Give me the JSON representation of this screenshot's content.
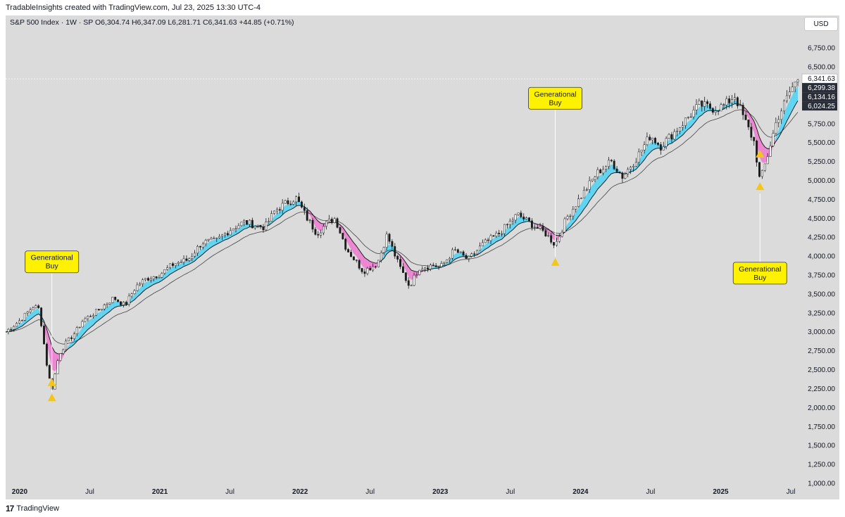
{
  "credit": "TradableInsights created with TradingView.com, Jul 23, 2025 13:30 UTC-4",
  "symbol_line": "S&P 500 Index · 1W · SP  O6,304.74  H6,347.09  L6,281.71  C6,341.63  +44.85 (+0.71%)",
  "currency": "USD",
  "footer_brand": "TradingView",
  "colors": {
    "background": "#dbdbdb",
    "bull_fill": "#5fd3f0",
    "bear_fill": "#ec86d2",
    "candle": "#1b1b1b",
    "marker": "#f5c518",
    "callout_bg": "#fff200"
  },
  "chart_data": {
    "type": "line",
    "title": "S&P 500 Index · 1W · SP",
    "ylim": [
      1000,
      6900
    ],
    "y_ticks": [
      "6,750.00",
      "6,500.00",
      "6,250.00",
      "6,000.00",
      "5,750.00",
      "5,500.00",
      "5,250.00",
      "5,000.00",
      "4,750.00",
      "4,500.00",
      "4,250.00",
      "4,000.00",
      "3,750.00",
      "3,500.00",
      "3,250.00",
      "3,000.00",
      "2,750.00",
      "2,500.00",
      "2,250.00",
      "2,000.00",
      "1,750.00",
      "1,500.00",
      "1,250.00",
      "1,000.00"
    ],
    "x_ticks": [
      {
        "label": "2020",
        "t": 2020.0,
        "bold": true
      },
      {
        "label": "Jul",
        "t": 2020.5,
        "bold": false
      },
      {
        "label": "2021",
        "t": 2021.0,
        "bold": true
      },
      {
        "label": "Jul",
        "t": 2021.5,
        "bold": false
      },
      {
        "label": "2022",
        "t": 2022.0,
        "bold": true
      },
      {
        "label": "Jul",
        "t": 2022.5,
        "bold": false
      },
      {
        "label": "2023",
        "t": 2023.0,
        "bold": true
      },
      {
        "label": "Jul",
        "t": 2023.5,
        "bold": false
      },
      {
        "label": "2024",
        "t": 2024.0,
        "bold": true
      },
      {
        "label": "Jul",
        "t": 2024.5,
        "bold": false
      },
      {
        "label": "2025",
        "t": 2025.0,
        "bold": true
      },
      {
        "label": "Jul",
        "t": 2025.5,
        "bold": false
      }
    ],
    "xlim": [
      2019.9,
      2025.55
    ],
    "price_path": [
      [
        2019.9,
        3000
      ],
      [
        2020.0,
        3150
      ],
      [
        2020.1,
        3340
      ],
      [
        2020.14,
        3300
      ],
      [
        2020.2,
        2480
      ],
      [
        2020.23,
        2237
      ],
      [
        2020.28,
        2700
      ],
      [
        2020.33,
        2850
      ],
      [
        2020.4,
        3000
      ],
      [
        2020.45,
        3150
      ],
      [
        2020.55,
        3270
      ],
      [
        2020.67,
        3450
      ],
      [
        2020.75,
        3350
      ],
      [
        2020.83,
        3600
      ],
      [
        2020.9,
        3700
      ],
      [
        2021.0,
        3760
      ],
      [
        2021.1,
        3900
      ],
      [
        2021.2,
        3950
      ],
      [
        2021.3,
        4180
      ],
      [
        2021.4,
        4200
      ],
      [
        2021.5,
        4350
      ],
      [
        2021.6,
        4450
      ],
      [
        2021.7,
        4400
      ],
      [
        2021.75,
        4380
      ],
      [
        2021.82,
        4600
      ],
      [
        2021.9,
        4700
      ],
      [
        2021.97,
        4770
      ],
      [
        2022.05,
        4500
      ],
      [
        2022.12,
        4300
      ],
      [
        2022.2,
        4450
      ],
      [
        2022.25,
        4500
      ],
      [
        2022.33,
        4100
      ],
      [
        2022.45,
        3800
      ],
      [
        2022.55,
        3900
      ],
      [
        2022.62,
        4280
      ],
      [
        2022.7,
        3900
      ],
      [
        2022.78,
        3600
      ],
      [
        2022.85,
        3850
      ],
      [
        2022.95,
        3880
      ],
      [
        2023.0,
        3850
      ],
      [
        2023.1,
        4080
      ],
      [
        2023.2,
        3950
      ],
      [
        2023.3,
        4150
      ],
      [
        2023.42,
        4300
      ],
      [
        2023.55,
        4550
      ],
      [
        2023.63,
        4450
      ],
      [
        2023.75,
        4300
      ],
      [
        2023.82,
        4150
      ],
      [
        2023.9,
        4500
      ],
      [
        2024.0,
        4780
      ],
      [
        2024.12,
        5100
      ],
      [
        2024.22,
        5250
      ],
      [
        2024.3,
        5050
      ],
      [
        2024.4,
        5300
      ],
      [
        2024.5,
        5600
      ],
      [
        2024.57,
        5450
      ],
      [
        2024.65,
        5600
      ],
      [
        2024.75,
        5800
      ],
      [
        2024.85,
        6000
      ],
      [
        2024.95,
        5950
      ],
      [
        2025.02,
        5980
      ],
      [
        2025.1,
        6120
      ],
      [
        2025.17,
        5800
      ],
      [
        2025.24,
        5500
      ],
      [
        2025.28,
        4980
      ],
      [
        2025.33,
        5300
      ],
      [
        2025.4,
        5800
      ],
      [
        2025.5,
        6200
      ],
      [
        2025.55,
        6341.63
      ]
    ],
    "price_labels": [
      {
        "label": "6,341.63",
        "value": 6341.63,
        "style": "light"
      },
      {
        "label": "6,299.38",
        "value": 6299.38,
        "style": "dark"
      },
      {
        "label": "6,134.16",
        "value": 6134.16,
        "style": "dark"
      },
      {
        "label": "6,024.25",
        "value": 6024.25,
        "style": "dark"
      }
    ],
    "annotations": [
      {
        "text_line1": "Generational",
        "text_line2": "Buy",
        "t": 2020.23,
        "box_value": 3920,
        "marker_value": 2130,
        "marker2_value": 2330
      },
      {
        "text_line1": "Generational",
        "text_line2": "Buy",
        "t": 2023.82,
        "box_value": 6080,
        "marker_value": 3920
      },
      {
        "text_line1": "Generational",
        "text_line2": "Buy",
        "t": 2025.28,
        "box_value": 3770,
        "marker_value": 4920,
        "marker2_value": 5350
      }
    ]
  }
}
